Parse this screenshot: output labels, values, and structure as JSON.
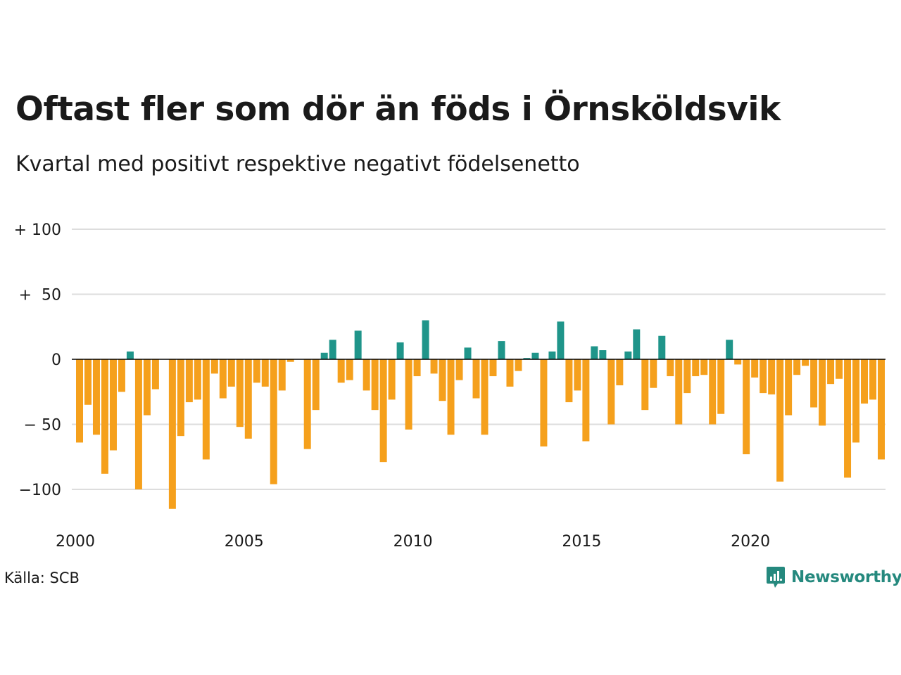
{
  "title": "Oftast fler som dör än föds i Örnsköldsvik",
  "subtitle": "Kvartal med positivt respektive negativt födelsenetto",
  "source": "Källa: SCB",
  "brand": "Newsworthy",
  "brand_icon": "newsworthy-logo-icon",
  "colors": {
    "positive": "#1f958a",
    "negative": "#f5a01c",
    "grid": "#dddddd",
    "zero": "#000000",
    "brand": "#25897e"
  },
  "chart_data": {
    "type": "bar",
    "title": "Oftast fler som dör än föds i Örnsköldsvik",
    "subtitle": "Kvartal med positivt respektive negativt födelsenetto",
    "xlabel": "",
    "ylabel": "",
    "ylim": [
      -120,
      100
    ],
    "yticks": [
      100,
      50,
      0,
      -50,
      -100
    ],
    "ytick_labels": [
      "+ 100",
      "+  50",
      "0",
      "− 50",
      "−100"
    ],
    "xticks": [
      "2000",
      "2005",
      "2010",
      "2015",
      "2020"
    ],
    "grid": true,
    "legend": "none",
    "categories": [
      "2000K1",
      "2000K2",
      "2000K3",
      "2000K4",
      "2001K1",
      "2001K2",
      "2001K3",
      "2001K4",
      "2002K1",
      "2002K2",
      "2002K3",
      "2002K4",
      "2003K1",
      "2003K2",
      "2003K3",
      "2003K4",
      "2004K1",
      "2004K2",
      "2004K3",
      "2004K4",
      "2005K1",
      "2005K2",
      "2005K3",
      "2005K4",
      "2006K1",
      "2006K2",
      "2006K3",
      "2006K4",
      "2007K1",
      "2007K2",
      "2007K3",
      "2007K4",
      "2008K1",
      "2008K2",
      "2008K3",
      "2008K4",
      "2009K1",
      "2009K2",
      "2009K3",
      "2009K4",
      "2010K1",
      "2010K2",
      "2010K3",
      "2010K4",
      "2011K1",
      "2011K2",
      "2011K3",
      "2011K4",
      "2012K1",
      "2012K2",
      "2012K3",
      "2012K4",
      "2013K1",
      "2013K2",
      "2013K3",
      "2013K4",
      "2014K1",
      "2014K2",
      "2014K3",
      "2014K4",
      "2015K1",
      "2015K2",
      "2015K3",
      "2015K4",
      "2016K1",
      "2016K2",
      "2016K3",
      "2016K4",
      "2017K1",
      "2017K2",
      "2017K3",
      "2017K4",
      "2018K1",
      "2018K2",
      "2018K3",
      "2018K4",
      "2019K1",
      "2019K2",
      "2019K3",
      "2019K4",
      "2020K1",
      "2020K2",
      "2020K3",
      "2020K4",
      "2021K1",
      "2021K2",
      "2021K3",
      "2021K4",
      "2022K1",
      "2022K2",
      "2022K3",
      "2022K4",
      "2023K1",
      "2023K2",
      "2023K3",
      "2023K4"
    ],
    "values": [
      -64,
      -35,
      -58,
      -88,
      -70,
      -25,
      6,
      -100,
      -43,
      -23,
      0,
      -115,
      -59,
      -33,
      -31,
      -77,
      -11,
      -30,
      -21,
      -52,
      -61,
      -18,
      -21,
      -96,
      -24,
      -2,
      0,
      -69,
      -39,
      5,
      15,
      -18,
      -16,
      22,
      -24,
      -39,
      -79,
      -31,
      13,
      -54,
      -13,
      30,
      -11,
      -32,
      -58,
      -16,
      9,
      -30,
      -58,
      -13,
      14,
      -21,
      -9,
      1,
      5,
      -67,
      6,
      29,
      -33,
      -24,
      -63,
      10,
      7,
      -50,
      -20,
      6,
      23,
      -39,
      -22,
      18,
      -13,
      -50,
      -26,
      -13,
      -12,
      -50,
      -42,
      15,
      -4,
      -73,
      -14,
      -26,
      -27,
      -94,
      -43,
      -12,
      -5,
      -37,
      -51,
      -19,
      -15,
      -91,
      -64,
      -34,
      -31,
      -77
    ]
  }
}
